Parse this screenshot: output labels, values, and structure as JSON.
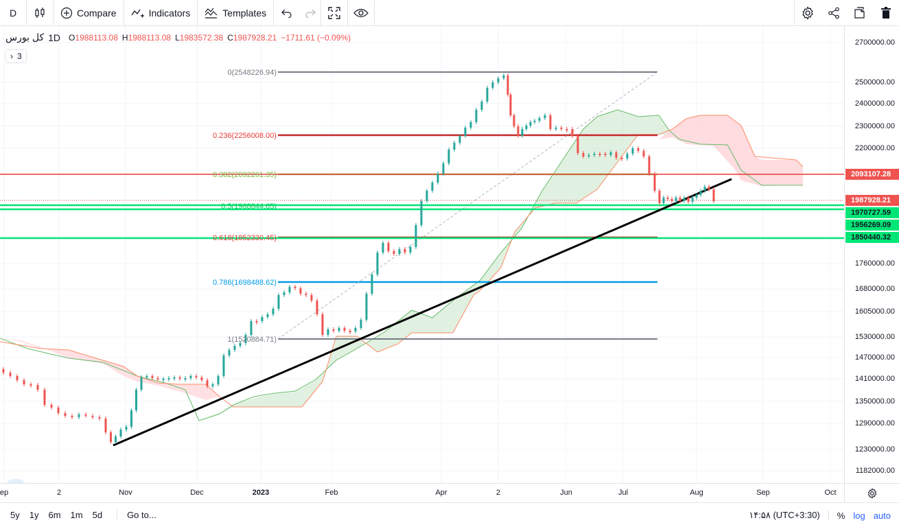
{
  "toolbar": {
    "symbol_short": "D",
    "compare_label": "Compare",
    "indicators_label": "Indicators",
    "templates_label": "Templates",
    "icons": [
      "candles-icon",
      "plus-circle-icon",
      "indicators-icon",
      "templates-icon",
      "undo-icon",
      "redo-icon",
      "fullscreen-icon",
      "eye-icon",
      "gear-icon",
      "share-icon",
      "snapshot-icon",
      "trash-icon"
    ]
  },
  "legend": {
    "symbol": "کل بورس",
    "timeframe": "1D",
    "open_label": "O",
    "open": "1988113.08",
    "high_label": "H",
    "high": "1988113.08",
    "low_label": "L",
    "low": "1983572.38",
    "close_label": "C",
    "close": "1987928.21",
    "change": "−1711.61 (−0.09%)",
    "indicator_count": "3"
  },
  "colors": {
    "up": "#26a69a",
    "down": "#ef5350",
    "fib_red": "#e53935",
    "fib_green": "#7cb342",
    "fib_blue": "#039be5",
    "fib_gray": "#787b86",
    "line_green": "#00e676",
    "cloud_green": "#c8e6c9",
    "cloud_red": "#ffcdd2"
  },
  "fib_levels": [
    {
      "label": "0(2548226.94)",
      "color": "#787b86"
    },
    {
      "label": "0.236(2256008.00)",
      "color": "#e53935"
    },
    {
      "label": "0.382(2092261.35)",
      "color": "#7cb342"
    },
    {
      "label": "0.5(1968644.05)",
      "color": "#00c853"
    },
    {
      "label": "0.618(1852330.45)",
      "color": "#e53935"
    },
    {
      "label": "0.786(1698488.62)",
      "color": "#039be5"
    },
    {
      "label": "1(1520884.71)",
      "color": "#787b86"
    }
  ],
  "price_axis": {
    "ticks": [
      "2700000.00",
      "2500000.00",
      "2400000.00",
      "2300000.00",
      "2200000.00",
      "1760000.00",
      "1680000.00",
      "1605000.00",
      "1530000.00",
      "1470000.00",
      "1410000.00",
      "1350000.00",
      "1290000.00",
      "1230000.00",
      "1182000.00"
    ],
    "tags": [
      {
        "text": "2093107.28",
        "bg": "#ef5350",
        "fg": "#ffffff"
      },
      {
        "text": "1987928.21",
        "bg": "#ef5350",
        "fg": "#ffffff"
      },
      {
        "text": "1970727.59",
        "bg": "#00e676",
        "fg": "#131722"
      },
      {
        "text": "1956269.09",
        "bg": "#00e676",
        "fg": "#131722"
      },
      {
        "text": "1850440.32",
        "bg": "#00e676",
        "fg": "#131722"
      }
    ]
  },
  "time_axis": [
    "ep",
    "2",
    "Nov",
    "Dec",
    "2023",
    "Feb",
    "Apr",
    "2",
    "Jun",
    "Jul",
    "Aug",
    "Sep",
    "Oct"
  ],
  "bottom_bar": {
    "ranges": [
      "5y",
      "1y",
      "6m",
      "1m",
      "5d"
    ],
    "goto_label": "Go to...",
    "time": "۱۴:۵۸ (UTC+3:30)",
    "percent": "%",
    "log": "log",
    "auto": "auto"
  }
}
